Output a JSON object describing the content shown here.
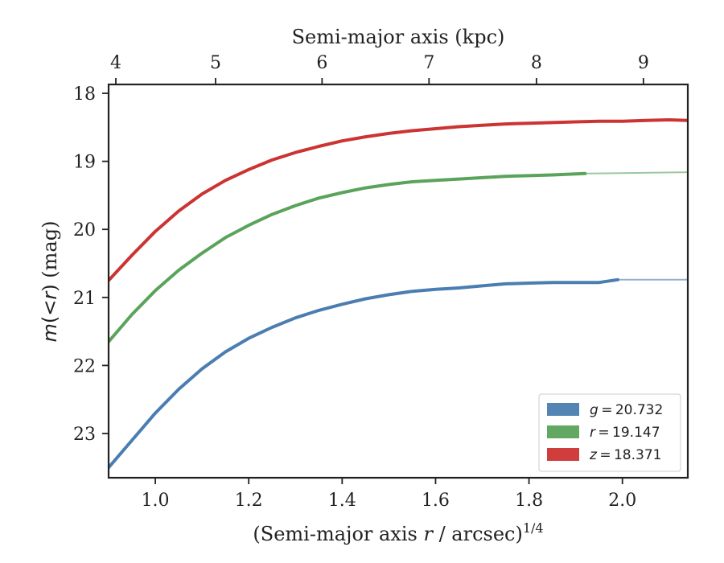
{
  "chart_data": {
    "type": "line",
    "title": "",
    "xlabel": "(Semi-major axis r / arcsec)^1/4",
    "xlabel_parts": {
      "pre": "(Semi-major axis ",
      "var": "r",
      "post": " / arcsec)",
      "sup": "1/4"
    },
    "ylabel": "m(<r) (mag)",
    "ylabel_parts": {
      "var": "m",
      "mid": "(<",
      "var2": "r",
      "post": ") (mag)"
    },
    "top_xlabel": "Semi-major axis (kpc)",
    "xlim": [
      0.9,
      2.14
    ],
    "ylim": [
      23.65,
      17.87
    ],
    "y_inverted": true,
    "x_ticks": [
      1.0,
      1.2,
      1.4,
      1.6,
      1.8,
      2.0
    ],
    "x_tick_labels": [
      "1.0",
      "1.2",
      "1.4",
      "1.6",
      "1.8",
      "2.0"
    ],
    "y_ticks": [
      18,
      19,
      20,
      21,
      22,
      23
    ],
    "y_tick_labels": [
      "18",
      "19",
      "20",
      "21",
      "22",
      "23"
    ],
    "top_x_ticks_kpc": [
      4,
      5,
      6,
      7,
      8,
      9
    ],
    "top_x_tick_positions": [
      0.9,
      1.129,
      1.357,
      1.586,
      1.816,
      2.045
    ],
    "top_x_tick_labels": [
      "4",
      "5",
      "6",
      "7",
      "8",
      "9"
    ],
    "grid": false,
    "legend_position": "bottom-right",
    "series": [
      {
        "name": "g = 20.732",
        "legend_var": "g",
        "legend_value": "20.732",
        "color": "#4a7eb0",
        "x": [
          0.9,
          0.95,
          1.0,
          1.05,
          1.1,
          1.15,
          1.2,
          1.25,
          1.3,
          1.35,
          1.4,
          1.45,
          1.5,
          1.55,
          1.6,
          1.65,
          1.7,
          1.75,
          1.8,
          1.85,
          1.9,
          1.95,
          1.99
        ],
        "y": [
          23.5,
          23.1,
          22.7,
          22.35,
          22.05,
          21.8,
          21.6,
          21.44,
          21.3,
          21.19,
          21.1,
          21.02,
          20.96,
          20.91,
          20.88,
          20.86,
          20.83,
          20.8,
          20.79,
          20.78,
          20.78,
          20.78,
          20.74
        ],
        "extension": {
          "x": [
            1.99,
            2.14
          ],
          "y": [
            20.74,
            20.74
          ]
        }
      },
      {
        "name": "r = 19.147",
        "legend_var": "r",
        "legend_value": "19.147",
        "color": "#5aa35a",
        "x": [
          0.9,
          0.95,
          1.0,
          1.05,
          1.1,
          1.15,
          1.2,
          1.25,
          1.3,
          1.35,
          1.4,
          1.45,
          1.5,
          1.55,
          1.6,
          1.65,
          1.7,
          1.75,
          1.8,
          1.85,
          1.92
        ],
        "y": [
          21.65,
          21.25,
          20.9,
          20.6,
          20.35,
          20.12,
          19.94,
          19.78,
          19.65,
          19.54,
          19.46,
          19.39,
          19.34,
          19.3,
          19.28,
          19.26,
          19.24,
          19.22,
          19.21,
          19.2,
          19.18
        ],
        "extension": {
          "x": [
            1.92,
            2.14
          ],
          "y": [
            19.18,
            19.16
          ]
        }
      },
      {
        "name": "z = 18.371",
        "legend_var": "z",
        "legend_value": "18.371",
        "color": "#cc3333",
        "x": [
          0.9,
          0.95,
          1.0,
          1.05,
          1.1,
          1.15,
          1.2,
          1.25,
          1.3,
          1.35,
          1.4,
          1.45,
          1.5,
          1.55,
          1.6,
          1.65,
          1.7,
          1.75,
          1.8,
          1.85,
          1.9,
          1.95,
          2.0,
          2.05,
          2.1,
          2.14
        ],
        "y": [
          20.75,
          20.38,
          20.03,
          19.73,
          19.48,
          19.28,
          19.12,
          18.98,
          18.87,
          18.78,
          18.7,
          18.64,
          18.59,
          18.55,
          18.52,
          18.49,
          18.47,
          18.45,
          18.44,
          18.43,
          18.42,
          18.41,
          18.41,
          18.4,
          18.39,
          18.4
        ]
      }
    ]
  }
}
